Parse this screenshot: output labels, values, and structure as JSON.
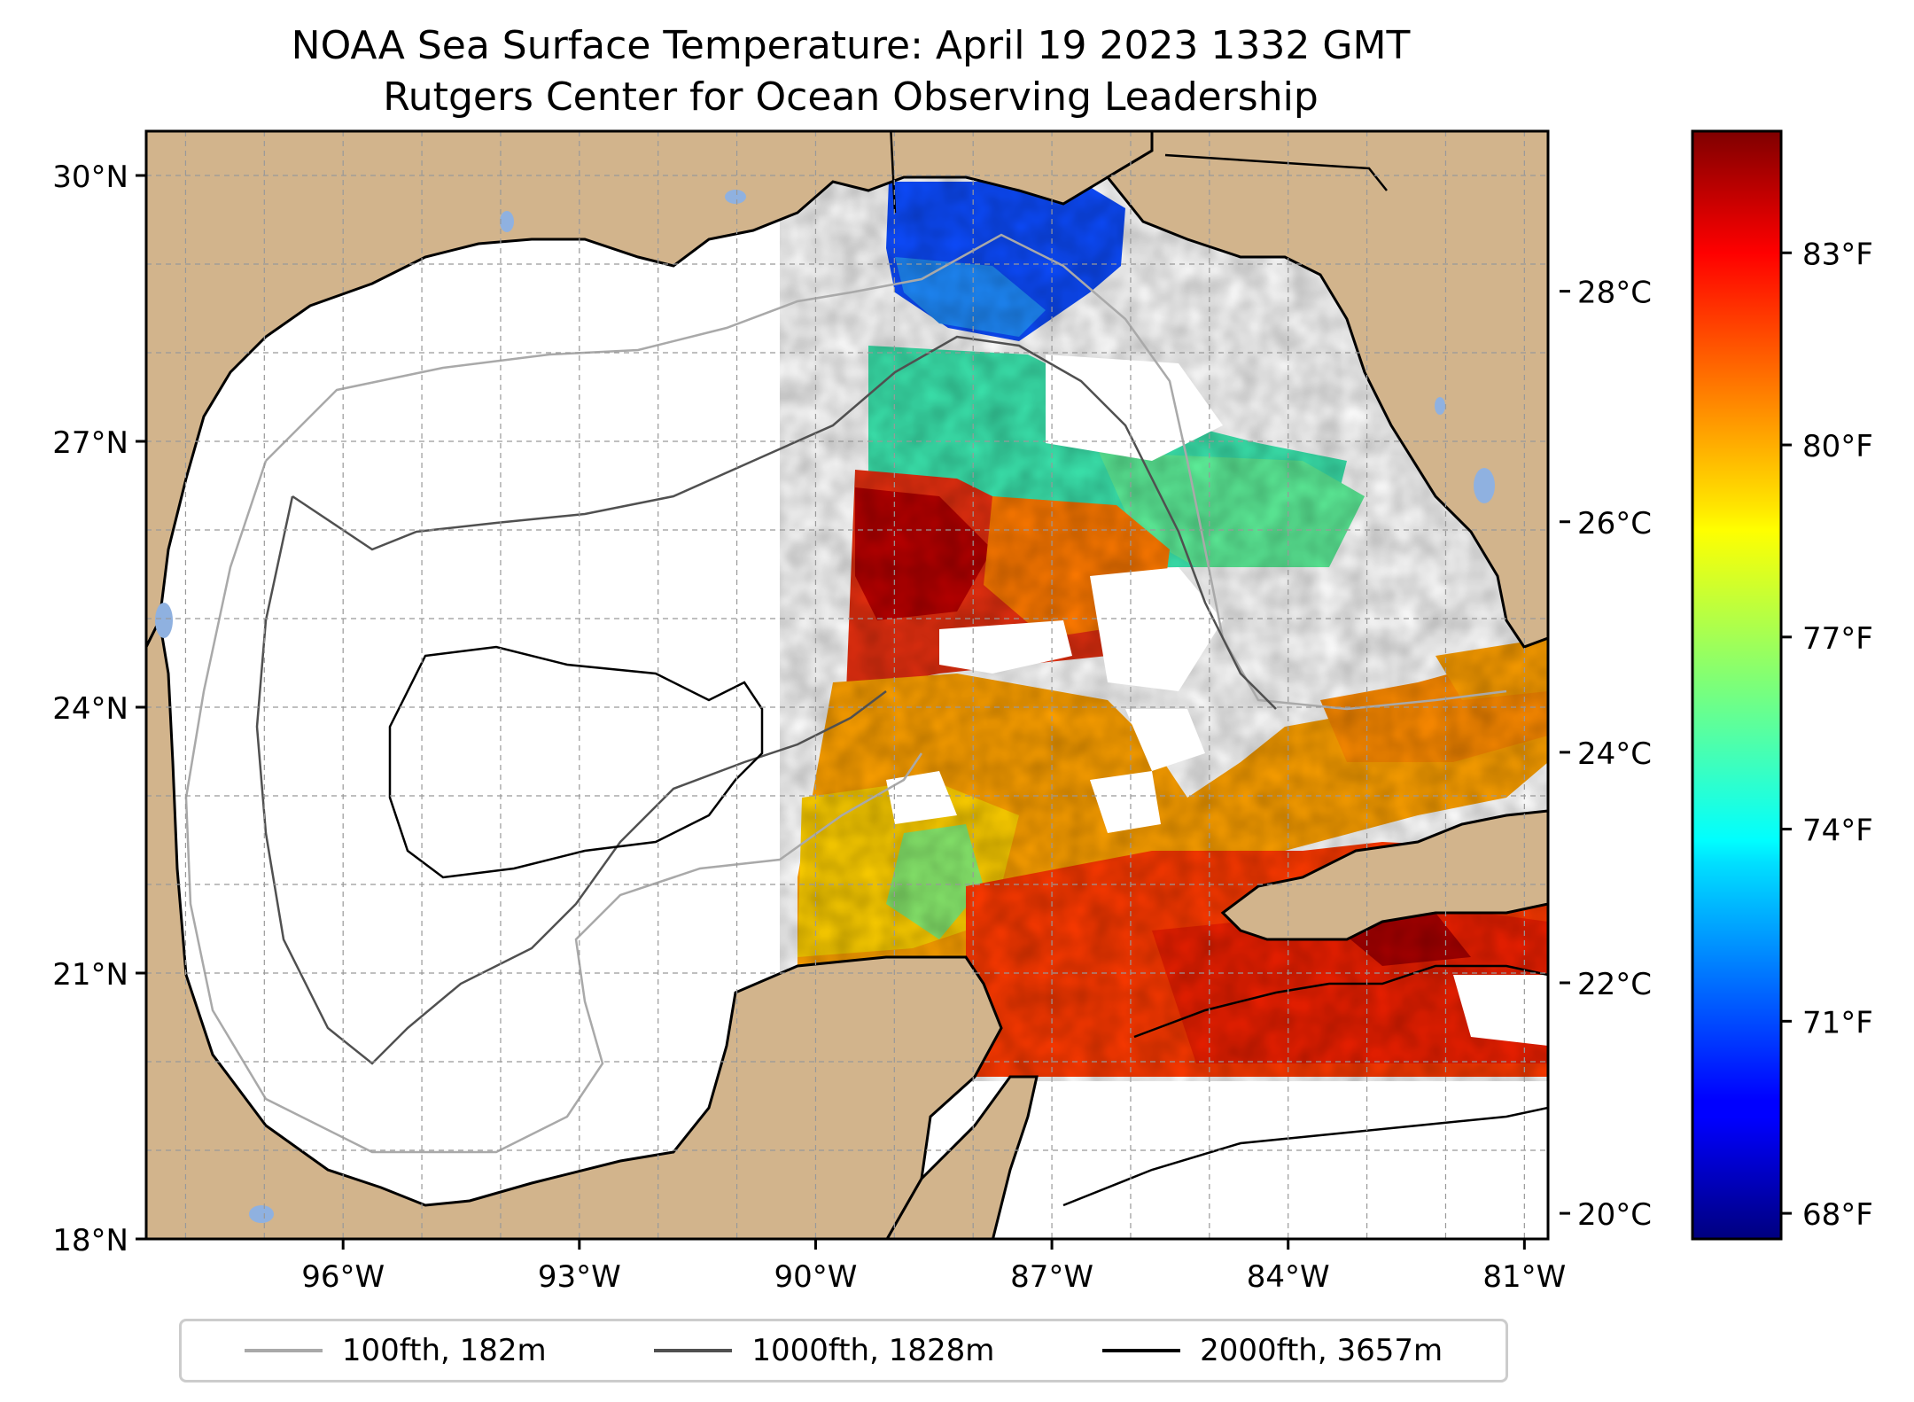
{
  "title_line1": "NOAA Sea Surface Temperature: April 19 2023 1332 GMT",
  "title_line2": "Rutgers Center for Ocean Observing Leadership",
  "map": {
    "lon_range": [
      -98.5,
      -80.7
    ],
    "lat_range": [
      18.0,
      30.5
    ],
    "lat_ticks": [
      {
        "value": 30,
        "label": "30°N"
      },
      {
        "value": 27,
        "label": "27°N"
      },
      {
        "value": 24,
        "label": "24°N"
      },
      {
        "value": 21,
        "label": "21°N"
      },
      {
        "value": 18,
        "label": "18°N"
      }
    ],
    "lon_ticks": [
      {
        "value": -96,
        "label": "96°W"
      },
      {
        "value": -93,
        "label": "93°W"
      },
      {
        "value": -90,
        "label": "90°W"
      },
      {
        "value": -87,
        "label": "87°W"
      },
      {
        "value": -84,
        "label": "84°W"
      },
      {
        "value": -81,
        "label": "81°W"
      }
    ],
    "gridlines": true,
    "land_color": "#d2b48c",
    "ocean_color": "#ffffff",
    "lake_color": "#8fb1e0"
  },
  "colorbar": {
    "colormap": "jet",
    "celsius_ticks": [
      {
        "value": 20,
        "label": "20°C"
      },
      {
        "value": 22,
        "label": "22°C"
      },
      {
        "value": 24,
        "label": "24°C"
      },
      {
        "value": 26,
        "label": "26°C"
      },
      {
        "value": 28,
        "label": "28°C"
      }
    ],
    "fahrenheit_ticks": [
      {
        "value": 68,
        "label": "68°F"
      },
      {
        "value": 71,
        "label": "71°F"
      },
      {
        "value": 74,
        "label": "74°F"
      },
      {
        "value": 77,
        "label": "77°F"
      },
      {
        "value": 80,
        "label": "80°F"
      },
      {
        "value": 83,
        "label": "83°F"
      }
    ],
    "range_f": [
      67.6,
      84.9
    ]
  },
  "legend": [
    {
      "label": "100fth, 182m",
      "color": "#a9a9a9"
    },
    {
      "label": "1000fth, 1828m",
      "color": "#505050"
    },
    {
      "label": "2000fth, 3657m",
      "color": "#000000"
    }
  ]
}
